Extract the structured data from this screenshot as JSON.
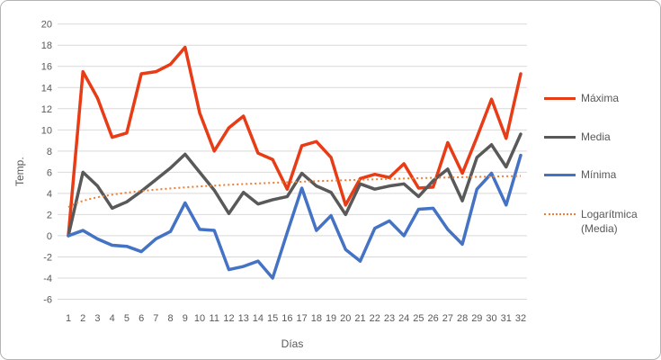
{
  "chart": {
    "y_axis_title": "Temp.",
    "x_axis_title": "Días",
    "legend_items": [
      {
        "id": "maxima",
        "label": "Máxima",
        "color": "#e83c17",
        "style": "solid"
      },
      {
        "id": "media",
        "label": "Media",
        "color": "#595959",
        "style": "solid"
      },
      {
        "id": "minima",
        "label": "Mínima",
        "color": "#4472c4",
        "style": "solid"
      },
      {
        "id": "logaritmica",
        "label": "Logarítmica (Media)",
        "color": "#ed7d31",
        "style": "dotted"
      }
    ]
  },
  "chart_data": {
    "type": "line",
    "title": "",
    "xlabel": "Días",
    "ylabel": "Temp.",
    "x": [
      1,
      2,
      3,
      4,
      5,
      6,
      7,
      8,
      9,
      10,
      11,
      12,
      13,
      14,
      15,
      16,
      17,
      18,
      19,
      20,
      21,
      22,
      23,
      24,
      25,
      26,
      27,
      28,
      29,
      30,
      31,
      32
    ],
    "ylim": [
      -6,
      20
    ],
    "ytick_step": 2,
    "grid": true,
    "grid_color": "#d9d9d9",
    "tick_color": "#595959",
    "legend_position": "right",
    "series": [
      {
        "name": "Máxima",
        "color": "#e83c17",
        "style": "solid",
        "values": [
          0,
          15.5,
          13.0,
          9.3,
          9.7,
          15.3,
          15.5,
          16.2,
          17.8,
          11.6,
          8.0,
          10.2,
          11.3,
          7.8,
          7.2,
          4.4,
          8.5,
          8.9,
          7.4,
          2.9,
          5.4,
          5.8,
          5.5,
          6.8,
          4.5,
          4.6,
          8.8,
          5.9,
          9.3,
          12.9,
          9.2,
          15.3
        ]
      },
      {
        "name": "Media",
        "color": "#595959",
        "style": "solid",
        "values": [
          0,
          6.0,
          4.7,
          2.6,
          3.2,
          4.2,
          5.3,
          6.4,
          7.7,
          6.0,
          4.3,
          2.1,
          4.1,
          3.0,
          3.4,
          3.7,
          5.9,
          4.7,
          4.1,
          2.0,
          4.9,
          4.4,
          4.7,
          4.9,
          3.7,
          5.2,
          6.3,
          3.3,
          7.4,
          8.6,
          6.5,
          9.6
        ]
      },
      {
        "name": "Mínima",
        "color": "#4472c4",
        "style": "solid",
        "values": [
          0,
          0.5,
          -0.3,
          -0.9,
          -1.0,
          -1.5,
          -0.3,
          0.4,
          3.1,
          0.6,
          0.5,
          -3.2,
          -2.9,
          -2.4,
          -4.0,
          0.3,
          4.5,
          0.5,
          1.9,
          -1.3,
          -2.4,
          0.7,
          1.4,
          0.0,
          2.5,
          2.6,
          0.6,
          -0.8,
          4.4,
          5.9,
          2.9,
          7.6
        ]
      },
      {
        "name": "Logarítmica (Media)",
        "color": "#ed7d31",
        "style": "dotted",
        "trend": "logarithmic",
        "formula": "y = 0.85*ln(x) + 2.7",
        "a": 0.85,
        "b": 2.7
      }
    ]
  }
}
